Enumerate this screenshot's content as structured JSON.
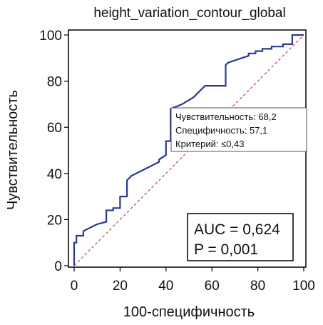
{
  "chart_data": {
    "type": "line",
    "title": "height_variation_contour_global",
    "xlabel": "100-специфичность",
    "ylabel": "Чувствительность",
    "xlim": [
      0,
      100
    ],
    "ylim": [
      0,
      100
    ],
    "x_ticks": [
      "0",
      "20",
      "40",
      "60",
      "80",
      "100"
    ],
    "y_ticks": [
      "0",
      "20",
      "40",
      "60",
      "80",
      "100"
    ],
    "grid": false,
    "series": [
      {
        "type": "step",
        "color": "#2a3a93",
        "x": [
          0,
          0,
          1,
          1,
          4,
          4,
          6,
          10,
          14,
          14,
          17,
          17,
          20,
          20,
          23,
          23,
          25,
          29,
          33,
          37,
          37,
          40,
          40,
          42,
          42,
          47,
          52,
          57,
          66,
          66,
          67,
          76,
          76,
          79,
          79,
          82,
          82,
          86,
          86,
          91,
          91,
          95,
          95,
          100
        ],
        "y": [
          0,
          10,
          10,
          13,
          13,
          15,
          16,
          18,
          19,
          24,
          24,
          25,
          25,
          30,
          30,
          37,
          39,
          41,
          43,
          45,
          46,
          48,
          54,
          54,
          68,
          70,
          73,
          78,
          78,
          87,
          88,
          91,
          92,
          92,
          93,
          93,
          94,
          94,
          95,
          95,
          96,
          96,
          100,
          100
        ]
      },
      {
        "type": "reference",
        "color": "#c0504d",
        "x": [
          0,
          100
        ],
        "y": [
          0,
          100
        ]
      }
    ],
    "tooltip": {
      "lines": [
        "Чувствительность: 68,2",
        "Специфичность: 57,1",
        "Критерий: ≤0,43"
      ]
    },
    "auc_box": {
      "lines": [
        "AUC = 0,624",
        "P = 0,001"
      ]
    }
  }
}
